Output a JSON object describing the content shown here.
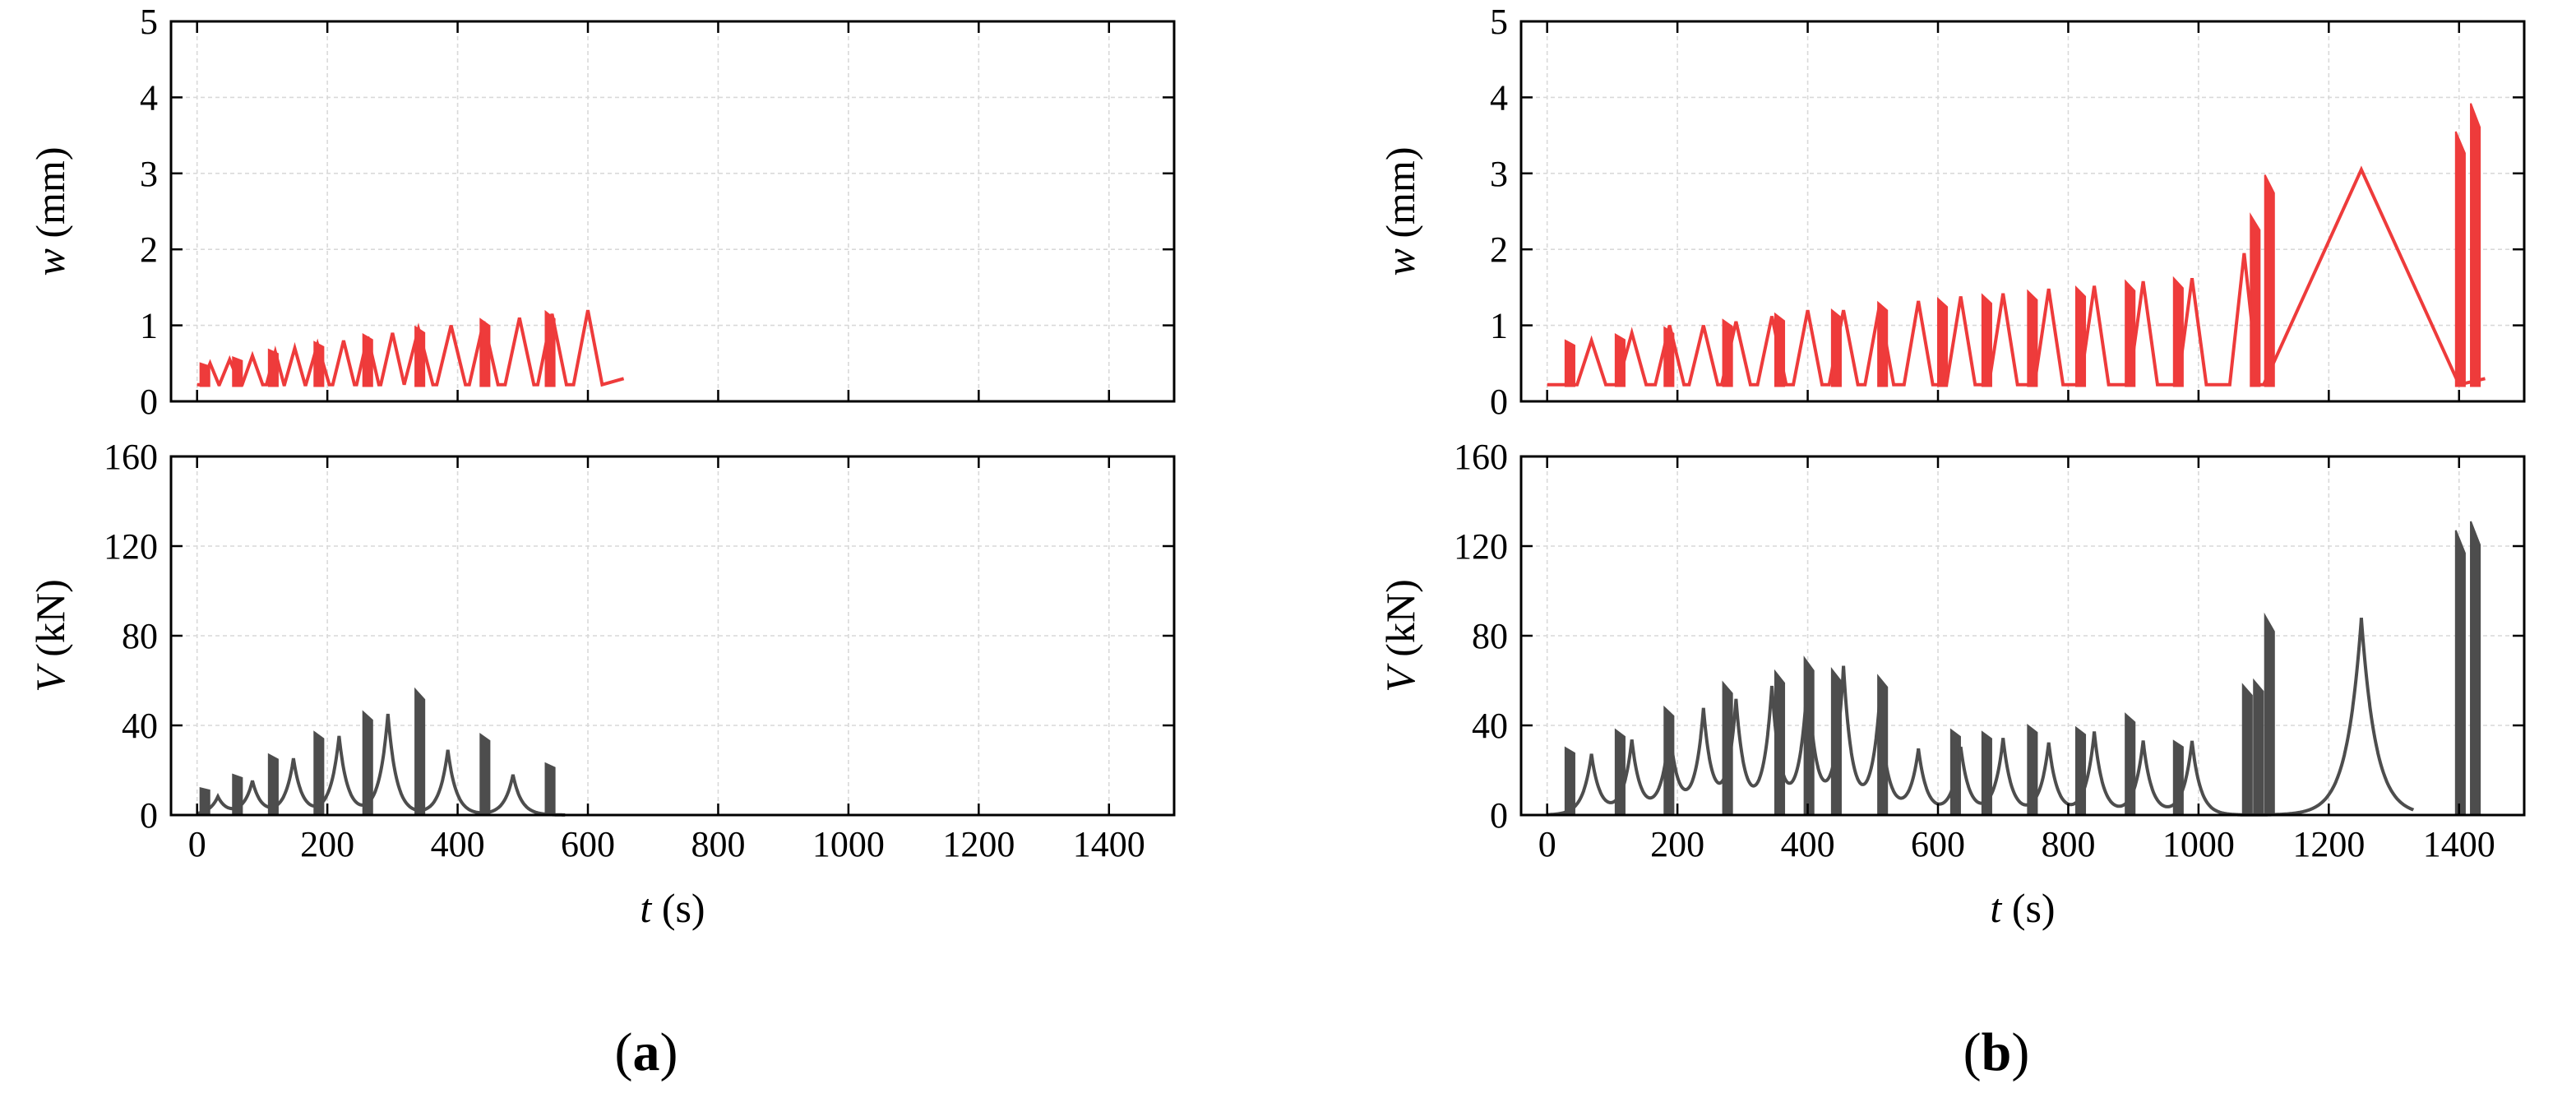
{
  "figure": {
    "panels": [
      {
        "label_open": "(",
        "label_letter": "a",
        "label_close": ")"
      },
      {
        "label_open": "(",
        "label_letter": "b",
        "label_close": ")"
      }
    ]
  },
  "chart_data": [
    {
      "panel": "a",
      "type": "line",
      "subplot": "top",
      "title": "",
      "ylabel_var": "w",
      "ylabel_unit": " (mm)",
      "xlim": [
        -40,
        1500
      ],
      "ylim": [
        0,
        5
      ],
      "xticks": [
        0,
        200,
        400,
        600,
        800,
        1000,
        1200,
        1400
      ],
      "yticks": [
        0,
        1,
        2,
        3,
        4,
        5
      ],
      "grid": true,
      "color": "#EE3B3B",
      "series": [
        {
          "name": "w",
          "ramps": [
            [
              20,
              0.5
            ],
            [
              50,
              0.55
            ],
            [
              85,
              0.6
            ],
            [
              120,
              0.65
            ],
            [
              150,
              0.7
            ],
            [
              185,
              0.75
            ],
            [
              225,
              0.8
            ],
            [
              262,
              0.85
            ],
            [
              300,
              0.9
            ],
            [
              340,
              0.95
            ],
            [
              390,
              1.0
            ],
            [
              440,
              1.05
            ],
            [
              495,
              1.1
            ],
            [
              545,
              1.15
            ],
            [
              600,
              1.2
            ]
          ],
          "bursts": [
            [
              5,
              0.5
            ],
            [
              55,
              0.58
            ],
            [
              110,
              0.68
            ],
            [
              180,
              0.78
            ],
            [
              255,
              0.88
            ],
            [
              335,
              0.98
            ],
            [
              435,
              1.08
            ],
            [
              535,
              1.18
            ]
          ],
          "end_t": 655
        }
      ]
    },
    {
      "panel": "a",
      "type": "line",
      "subplot": "bottom",
      "xlabel_var": "t",
      "xlabel_unit": " (s)",
      "ylabel_var": "V",
      "ylabel_unit": " (kN)",
      "xlim": [
        -40,
        1500
      ],
      "ylim": [
        0,
        160
      ],
      "xticks": [
        0,
        200,
        400,
        600,
        800,
        1000,
        1200,
        1400
      ],
      "xticklabels": [
        "0",
        "200",
        "400",
        "600",
        "800",
        "1000",
        "1200",
        "1400"
      ],
      "yticks": [
        0,
        40,
        80,
        120,
        160
      ],
      "grid": true,
      "color": "#4D4D4D",
      "series": [
        {
          "name": "V",
          "peaks": [
            [
              32,
              8
            ],
            [
              85,
              15
            ],
            [
              148,
              25
            ],
            [
              218,
              35
            ],
            [
              293,
              45
            ],
            [
              385,
              29
            ],
            [
              485,
              18
            ]
          ],
          "bursts": [
            [
              5,
              12
            ],
            [
              55,
              18
            ],
            [
              110,
              27
            ],
            [
              180,
              37
            ],
            [
              255,
              46
            ],
            [
              335,
              56
            ],
            [
              435,
              36
            ],
            [
              535,
              23
            ]
          ]
        }
      ]
    },
    {
      "panel": "b",
      "type": "line",
      "subplot": "top",
      "ylabel_var": "w",
      "ylabel_unit": " (mm)",
      "xlim": [
        -40,
        1500
      ],
      "ylim": [
        0,
        5
      ],
      "xticks": [
        0,
        200,
        400,
        600,
        800,
        1000,
        1200,
        1400
      ],
      "yticks": [
        0,
        1,
        2,
        3,
        4,
        5
      ],
      "grid": true,
      "color": "#EE3B3B",
      "series": [
        {
          "name": "w",
          "ramps": [
            [
              68,
              0.8
            ],
            [
              130,
              0.9
            ],
            [
              188,
              1.0
            ],
            [
              240,
              1.0
            ],
            [
              290,
              1.05
            ],
            [
              345,
              1.12
            ],
            [
              400,
              1.2
            ],
            [
              455,
              1.2
            ],
            [
              510,
              1.25
            ],
            [
              570,
              1.32
            ],
            [
              635,
              1.38
            ],
            [
              700,
              1.42
            ],
            [
              770,
              1.48
            ],
            [
              840,
              1.52
            ],
            [
              915,
              1.58
            ],
            [
              990,
              1.62
            ],
            [
              1070,
              1.95
            ],
            [
              1250,
              3.05
            ]
          ],
          "bursts": [
            [
              28,
              0.8
            ],
            [
              105,
              0.88
            ],
            [
              180,
              0.97
            ],
            [
              270,
              1.07
            ],
            [
              350,
              1.15
            ],
            [
              437,
              1.2
            ],
            [
              508,
              1.3
            ],
            [
              600,
              1.35
            ],
            [
              668,
              1.4
            ],
            [
              738,
              1.45
            ],
            [
              812,
              1.5
            ],
            [
              888,
              1.58
            ],
            [
              962,
              1.62
            ],
            [
              1080,
              2.45
            ],
            [
              1102,
              2.98
            ],
            [
              1395,
              3.55
            ],
            [
              1418,
              3.92
            ]
          ],
          "end_t": 1440
        }
      ]
    },
    {
      "panel": "b",
      "type": "line",
      "subplot": "bottom",
      "xlabel_var": "t",
      "xlabel_unit": " (s)",
      "ylabel_var": "V",
      "ylabel_unit": " (kN)",
      "xlim": [
        -40,
        1500
      ],
      "ylim": [
        0,
        160
      ],
      "xticks": [
        0,
        200,
        400,
        600,
        800,
        1000,
        1200,
        1400
      ],
      "xticklabels": [
        "0",
        "200",
        "400",
        "600",
        "800",
        "1000",
        "1200",
        "1400"
      ],
      "yticks": [
        0,
        40,
        80,
        120,
        160
      ],
      "grid": true,
      "color": "#4D4D4D",
      "series": [
        {
          "name": "V",
          "peaks": [
            [
              68,
              27
            ],
            [
              130,
              33
            ],
            [
              188,
              37
            ],
            [
              240,
              46
            ],
            [
              290,
              50
            ],
            [
              345,
              56
            ],
            [
              400,
              60
            ],
            [
              455,
              65
            ],
            [
              510,
              48
            ],
            [
              570,
              29
            ],
            [
              635,
              30
            ],
            [
              700,
              34
            ],
            [
              770,
              32
            ],
            [
              840,
              37
            ],
            [
              915,
              33
            ],
            [
              990,
              33
            ],
            [
              1250,
              88
            ]
          ],
          "bursts": [
            [
              28,
              30
            ],
            [
              105,
              38
            ],
            [
              180,
              48
            ],
            [
              270,
              59
            ],
            [
              350,
              64
            ],
            [
              395,
              70
            ],
            [
              437,
              65
            ],
            [
              508,
              62
            ],
            [
              620,
              38
            ],
            [
              668,
              37
            ],
            [
              738,
              40
            ],
            [
              812,
              39
            ],
            [
              888,
              45
            ],
            [
              962,
              33
            ],
            [
              1068,
              58
            ],
            [
              1085,
              60
            ],
            [
              1102,
              89
            ],
            [
              1395,
              127
            ],
            [
              1418,
              131
            ]
          ]
        }
      ]
    }
  ]
}
